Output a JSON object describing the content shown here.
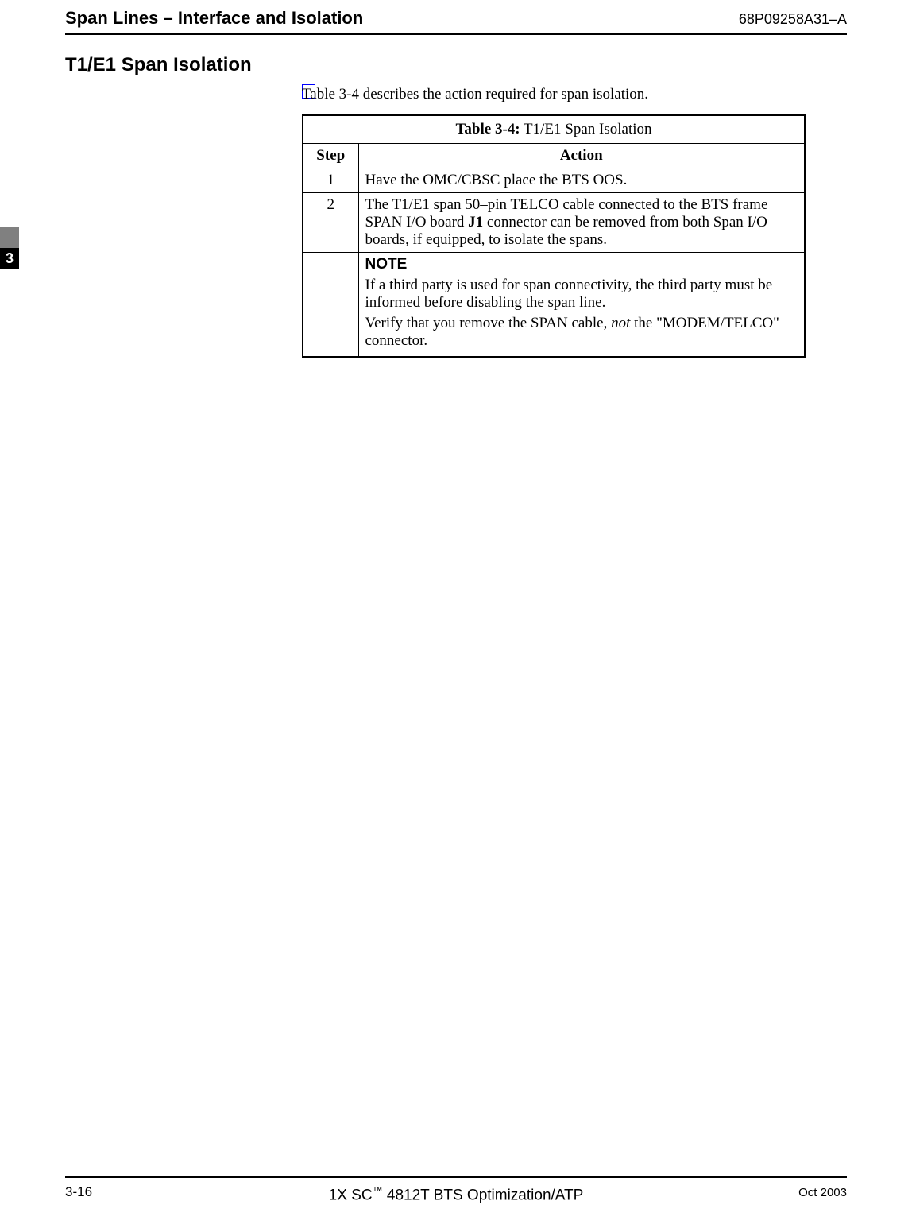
{
  "header": {
    "title": "Span Lines – Interface and Isolation",
    "doc_number": "68P09258A31–A"
  },
  "section_heading": "T1/E1 Span Isolation",
  "side_tab": {
    "chapter": "3"
  },
  "intro": "Table 3-4 describes the action required for span isolation.",
  "table": {
    "title_bold": "Table 3-4:",
    "title_rest": " T1/E1 Span Isolation",
    "col_step": "Step",
    "col_action": "Action",
    "rows": [
      {
        "step": "1",
        "action": "Have the OMC/CBSC place the BTS OOS."
      },
      {
        "step": "2",
        "action_pre": "The T1/E1 span 50–pin TELCO cable connected to the BTS frame SPAN I/O board ",
        "action_bold": "J1",
        "action_post": " connector can be removed from both Span I/O boards, if equipped, to isolate the spans."
      }
    ],
    "note": {
      "label": "NOTE",
      "p1": "If a third party is used for span connectivity, the third party must be informed before disabling the span line.",
      "p2_pre": "Verify that you remove the SPAN cable, ",
      "p2_italic": "not",
      "p2_post": " the \"MODEM/TELCO\" connector."
    }
  },
  "footer": {
    "page": "3-16",
    "center_pre": "1X SC",
    "center_tm": "™",
    "center_post": " 4812T BTS Optimization/ATP",
    "date": "Oct 2003"
  }
}
